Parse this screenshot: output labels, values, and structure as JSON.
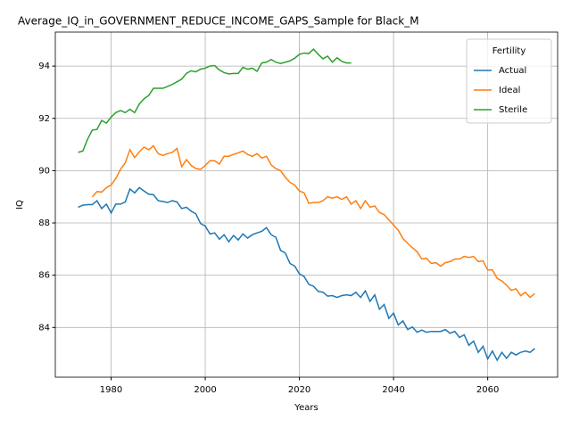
{
  "chart_data": {
    "type": "line",
    "title": "Average_IQ_in_GOVERNMENT_REDUCE_INCOME_GAPS_Sample for Black_M",
    "x_label": "Years",
    "y_label": "IQ",
    "x": [
      1973,
      1974,
      1975,
      1976,
      1977,
      1978,
      1979,
      1980,
      1981,
      1982,
      1983,
      1984,
      1985,
      1986,
      1987,
      1988,
      1989,
      1990,
      1991,
      1992,
      1993,
      1994,
      1995,
      1996,
      1997,
      1998,
      1999,
      2000,
      2001,
      2002,
      2003,
      2004,
      2005,
      2006,
      2007,
      2008,
      2009,
      2010,
      2011,
      2012,
      2013,
      2014,
      2015,
      2016,
      2017,
      2018,
      2019,
      2020,
      2021,
      2022,
      2023,
      2024,
      2025,
      2026,
      2027,
      2028,
      2029,
      2030,
      2031,
      2032,
      2033,
      2034,
      2035,
      2036,
      2037,
      2038,
      2039,
      2040,
      2041,
      2042,
      2043,
      2044,
      2045,
      2046,
      2047,
      2048,
      2049,
      2050,
      2051,
      2052,
      2053,
      2054,
      2055,
      2056,
      2057,
      2058,
      2059,
      2060,
      2061,
      2062,
      2063,
      2064,
      2065,
      2066,
      2067,
      2068,
      2069,
      2070
    ],
    "series": [
      {
        "name": "Actual",
        "color": "#1f77b4",
        "values": [
          88.6,
          88.68,
          88.7,
          88.7,
          88.85,
          88.55,
          88.72,
          88.38,
          88.72,
          88.72,
          88.8,
          89.3,
          89.15,
          89.35,
          89.22,
          89.1,
          89.08,
          88.85,
          88.82,
          88.78,
          88.85,
          88.8,
          88.55,
          88.6,
          88.45,
          88.35,
          87.98,
          87.88,
          87.58,
          87.62,
          87.38,
          87.55,
          87.28,
          87.52,
          87.35,
          87.58,
          87.42,
          87.55,
          87.62,
          87.68,
          87.82,
          87.55,
          87.45,
          86.95,
          86.85,
          86.45,
          86.35,
          86.05,
          85.95,
          85.65,
          85.58,
          85.38,
          85.35,
          85.2,
          85.22,
          85.15,
          85.22,
          85.25,
          85.22,
          85.35,
          85.15,
          85.4,
          85.0,
          85.25,
          84.7,
          84.88,
          84.35,
          84.55,
          84.1,
          84.25,
          83.92,
          84.02,
          83.82,
          83.9,
          83.82,
          83.85,
          83.85,
          83.85,
          83.92,
          83.78,
          83.85,
          83.62,
          83.72,
          83.32,
          83.48,
          83.05,
          83.28,
          82.8,
          83.1,
          82.75,
          83.05,
          82.82,
          83.05,
          82.95,
          83.05,
          83.1,
          83.05,
          83.2
        ]
      },
      {
        "name": "Ideal",
        "color": "#ff7f0e",
        "values": [
          null,
          null,
          null,
          89.0,
          89.2,
          89.18,
          89.35,
          89.45,
          89.7,
          90.05,
          90.3,
          90.8,
          90.5,
          90.72,
          90.9,
          90.8,
          90.95,
          90.65,
          90.58,
          90.65,
          90.7,
          90.85,
          90.15,
          90.42,
          90.2,
          90.08,
          90.05,
          90.2,
          90.38,
          90.38,
          90.25,
          90.55,
          90.55,
          90.62,
          90.68,
          90.75,
          90.62,
          90.55,
          90.65,
          90.48,
          90.55,
          90.22,
          90.08,
          90.0,
          89.75,
          89.55,
          89.45,
          89.22,
          89.15,
          88.75,
          88.78,
          88.78,
          88.85,
          89.0,
          88.95,
          89.0,
          88.9,
          89.0,
          88.72,
          88.85,
          88.55,
          88.85,
          88.6,
          88.65,
          88.4,
          88.32,
          88.12,
          87.92,
          87.72,
          87.4,
          87.22,
          87.05,
          86.9,
          86.62,
          86.65,
          86.45,
          86.48,
          86.35,
          86.48,
          86.52,
          86.62,
          86.62,
          86.72,
          86.68,
          86.72,
          86.52,
          86.55,
          86.2,
          86.2,
          85.88,
          85.78,
          85.62,
          85.42,
          85.48,
          85.22,
          85.35,
          85.15,
          85.3
        ]
      },
      {
        "name": "Sterile",
        "color": "#2ca02c",
        "values": [
          90.7,
          90.75,
          91.2,
          91.55,
          91.58,
          91.92,
          91.82,
          92.05,
          92.22,
          92.3,
          92.22,
          92.35,
          92.22,
          92.55,
          92.75,
          92.88,
          93.15,
          93.15,
          93.15,
          93.22,
          93.3,
          93.4,
          93.5,
          93.72,
          93.82,
          93.78,
          93.88,
          93.92,
          94.0,
          94.02,
          93.85,
          93.75,
          93.7,
          93.72,
          93.72,
          93.95,
          93.88,
          93.92,
          93.8,
          94.12,
          94.15,
          94.25,
          94.15,
          94.1,
          94.15,
          94.2,
          94.3,
          94.45,
          94.5,
          94.48,
          94.65,
          94.45,
          94.28,
          94.38,
          94.15,
          94.32,
          94.18,
          94.12,
          94.12,
          null,
          null,
          null,
          null,
          null,
          null,
          null,
          null,
          null,
          null,
          null,
          null,
          null,
          null,
          null,
          null,
          null,
          null,
          null,
          null,
          null,
          null,
          null,
          null,
          null,
          null,
          null,
          null,
          null,
          null,
          null,
          null,
          null,
          null,
          null,
          null,
          null,
          null,
          null
        ]
      }
    ],
    "xlim": [
      1968.15,
      2074.85
    ],
    "xticks": [
      1980,
      2000,
      2020,
      2040,
      2060
    ],
    "ylim": [
      82.1,
      95.3
    ],
    "yticks": [
      84,
      86,
      88,
      90,
      92,
      94
    ],
    "grid": true,
    "legend_title": "Fertility",
    "legend_position": "upper right"
  }
}
